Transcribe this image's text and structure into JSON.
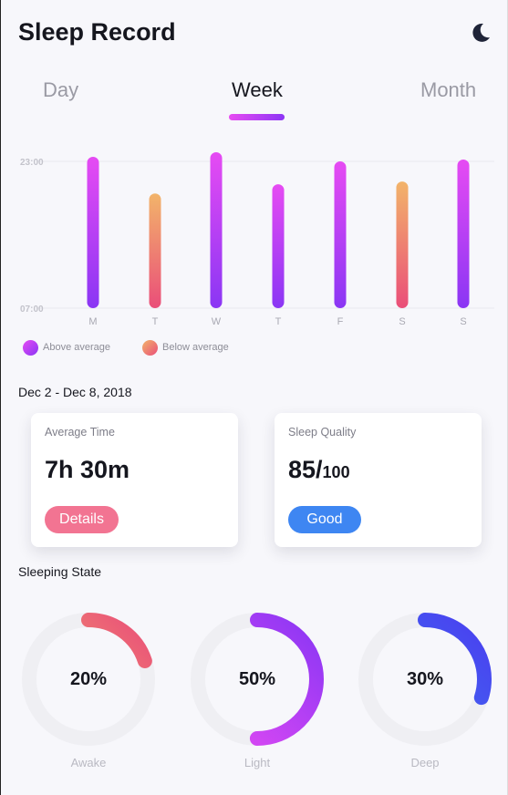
{
  "header": {
    "title": "Sleep Record",
    "theme_icon": "moon-icon"
  },
  "tabs": [
    {
      "label": "Day",
      "active": false
    },
    {
      "label": "Week",
      "active": true
    },
    {
      "label": "Month",
      "active": false
    }
  ],
  "chart_data": {
    "type": "bar",
    "categories": [
      "M",
      "T",
      "W",
      "T",
      "F",
      "S",
      "S"
    ],
    "y_ticks": [
      "23:00",
      "07:00"
    ],
    "ylim": [
      0,
      24
    ],
    "bars": [
      {
        "top": 23.5,
        "bottom": 7.0,
        "group": "above"
      },
      {
        "top": 19.5,
        "bottom": 7.0,
        "group": "below"
      },
      {
        "top": 24.0,
        "bottom": 7.0,
        "group": "above"
      },
      {
        "top": 20.5,
        "bottom": 7.0,
        "group": "above"
      },
      {
        "top": 23.0,
        "bottom": 7.0,
        "group": "above"
      },
      {
        "top": 20.8,
        "bottom": 7.0,
        "group": "below"
      },
      {
        "top": 23.2,
        "bottom": 7.0,
        "group": "above"
      }
    ],
    "legend": [
      {
        "key": "above",
        "label": "Above average",
        "colors": [
          "#e64bf3",
          "#8a36f4"
        ]
      },
      {
        "key": "below",
        "label": "Below average",
        "colors": [
          "#f2b46a",
          "#ea4e79"
        ]
      }
    ]
  },
  "date_range": "Dec 2 - Dec 8, 2018",
  "cards": {
    "average": {
      "label": "Average Time",
      "value": "7h 30m",
      "button": "Details"
    },
    "quality": {
      "label": "Sleep Quality",
      "value": "85/",
      "value_sub": "100",
      "button": "Good"
    }
  },
  "sleeping_state": {
    "title": "Sleeping State",
    "items": [
      {
        "label": "Awake",
        "percent": 20,
        "percent_text": "20%",
        "colors": [
          "#f2b46a",
          "#ea4e79"
        ]
      },
      {
        "label": "Light",
        "percent": 50,
        "percent_text": "50%",
        "colors": [
          "#e64bf3",
          "#8a36f4"
        ]
      },
      {
        "label": "Deep",
        "percent": 30,
        "percent_text": "30%",
        "colors": [
          "#3c78f0",
          "#4a3ff0"
        ]
      }
    ]
  }
}
